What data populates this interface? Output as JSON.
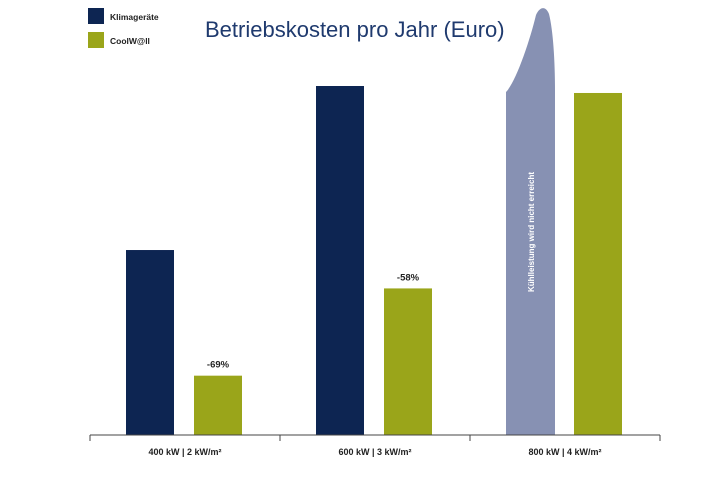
{
  "chart_data": {
    "type": "bar",
    "title": "Betriebskosten pro Jahr (Euro)",
    "categories": [
      "400 kW | 2 kW/m²",
      "600 kW | 3 kW/m²",
      "800 kW | 4 kW/m²"
    ],
    "series": [
      {
        "name": "Klimageräte",
        "color": "#0d2552",
        "values": [
          53,
          100,
          null
        ]
      },
      {
        "name": "CoolW@ll",
        "color": "#9aa51a",
        "values": [
          17,
          42,
          98
        ]
      }
    ],
    "data_labels": [
      "-69%",
      "-58%",
      ""
    ],
    "annotation": "Kühlleistung wird nicht erreicht",
    "annotation_color": "#8791b3",
    "ylim": [
      0,
      100
    ],
    "grid": false,
    "legend_position": "top-left"
  }
}
